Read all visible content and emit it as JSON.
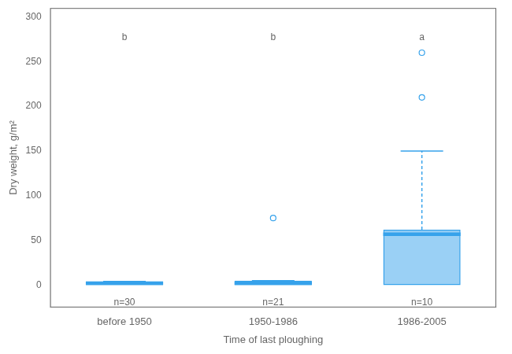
{
  "chart_data": {
    "type": "box",
    "categories": [
      "before 1950",
      "1950-1986",
      "1986-2005"
    ],
    "xlabel": "Time of last ploughing",
    "ylabel": "Dry weight, g/m²",
    "ylim": [
      -25,
      310
    ],
    "yticks": [
      0,
      50,
      100,
      150,
      200,
      250,
      300
    ],
    "grid": false,
    "boxes": [
      {
        "q1": 0,
        "median": 2,
        "q3": 4,
        "whisker_low": 0,
        "whisker_high": 4,
        "outliers": []
      },
      {
        "q1": 0,
        "median": 2,
        "q3": 5,
        "whisker_low": 0,
        "whisker_high": 5,
        "outliers": [
          75
        ]
      },
      {
        "q1": 0,
        "median": 57,
        "q3": 62,
        "whisker_low": 0,
        "whisker_high": 150,
        "outliers": [
          210,
          260
        ]
      }
    ],
    "annotations": [
      {
        "text": "n=30",
        "x": "before 1950",
        "y": -14
      },
      {
        "text": "n=21",
        "x": "1950-1986",
        "y": -14
      },
      {
        "text": "n=10",
        "x": "1986-2005",
        "y": -14
      },
      {
        "text": "b",
        "x": "before 1950",
        "y": 282
      },
      {
        "text": "b",
        "x": "1950-1986",
        "y": 282
      },
      {
        "text": "a",
        "x": "1986-2005",
        "y": 282
      }
    ]
  }
}
